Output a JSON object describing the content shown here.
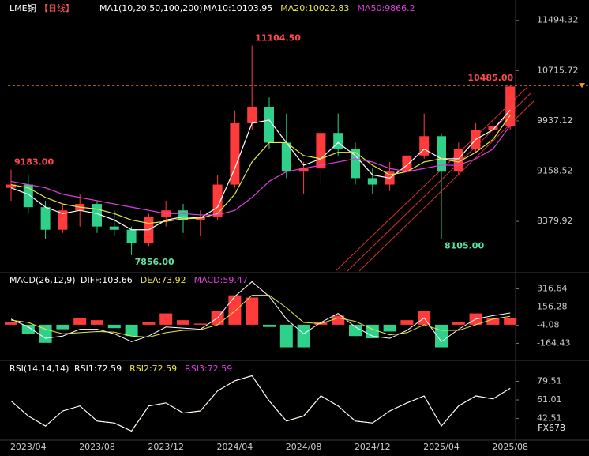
{
  "chart_data": [
    {
      "type": "candlestick",
      "title": "LME铜",
      "period": "【日线】",
      "ma_label": "MA1(10,20,50,100,200)",
      "watermark": "FX678",
      "up_color": "#ff3b3b",
      "down_color": "#2fd08a",
      "price_line": 10485,
      "price_line_color": "#ff9a1a",
      "open": [
        8900,
        8950,
        8600,
        8250,
        8550,
        8650,
        8300,
        8250,
        8050,
        8450,
        8550,
        8400,
        8450,
        8950,
        9900,
        10150,
        9600,
        9150,
        9200,
        9750,
        9500,
        9050,
        8950,
        9150,
        9400,
        9700,
        9150,
        9500,
        9800,
        9850
      ],
      "high": [
        9183,
        9100,
        8700,
        8650,
        8800,
        8700,
        8550,
        8300,
        8500,
        8700,
        8650,
        8550,
        9100,
        10100,
        11104.5,
        10300,
        10050,
        9300,
        9800,
        10050,
        9600,
        9200,
        9300,
        9500,
        10050,
        9750,
        9600,
        9900,
        10000,
        10485
      ],
      "low": [
        8700,
        8500,
        8100,
        8200,
        8300,
        8200,
        8150,
        7856,
        8000,
        8300,
        8200,
        8150,
        8400,
        8900,
        9800,
        9500,
        9050,
        8800,
        8950,
        9400,
        8950,
        8800,
        8850,
        9100,
        9350,
        8105,
        9100,
        9450,
        9650,
        9800
      ],
      "close": [
        8950,
        8600,
        8250,
        8550,
        8650,
        8300,
        8250,
        8050,
        8450,
        8550,
        8400,
        8450,
        8950,
        9900,
        10150,
        9600,
        9150,
        9200,
        9750,
        9500,
        9050,
        8950,
        9150,
        9400,
        9700,
        9150,
        9500,
        9800,
        9850,
        10470
      ],
      "series": [
        {
          "name": "MA10:10103.95",
          "color": "#ffffff",
          "values": [
            8900,
            8800,
            8600,
            8500,
            8550,
            8500,
            8400,
            8250,
            8250,
            8400,
            8450,
            8430,
            8600,
            9200,
            9900,
            9950,
            9600,
            9250,
            9350,
            9600,
            9400,
            9100,
            9050,
            9250,
            9500,
            9350,
            9350,
            9650,
            9800,
            10103.95
          ]
        },
        {
          "name": "MA20:10022.83",
          "color": "#e8e84a",
          "values": [
            8950,
            8900,
            8750,
            8650,
            8600,
            8570,
            8500,
            8400,
            8350,
            8380,
            8420,
            8430,
            8500,
            8800,
            9300,
            9600,
            9600,
            9400,
            9350,
            9450,
            9450,
            9250,
            9100,
            9150,
            9300,
            9350,
            9300,
            9450,
            9650,
            10022.83
          ]
        },
        {
          "name": "MA50:9866.2",
          "color": "#e040e0",
          "values": [
            9000,
            8950,
            8900,
            8800,
            8750,
            8700,
            8650,
            8600,
            8550,
            8500,
            8500,
            8480,
            8480,
            8550,
            8750,
            9000,
            9150,
            9200,
            9250,
            9300,
            9350,
            9300,
            9200,
            9150,
            9200,
            9250,
            9250,
            9350,
            9500,
            9866.2
          ]
        }
      ],
      "annotations": [
        {
          "value": 11104.5,
          "label": "11104.50"
        },
        {
          "value": 10485,
          "label": "10485.00"
        },
        {
          "value": 9183,
          "label": "9183.00"
        },
        {
          "value": 7856,
          "label": "7856.00"
        },
        {
          "value": 8105,
          "label": "8105.00"
        }
      ],
      "ylim": [
        7610,
        11638
      ],
      "yticks": [
        8379.92,
        9158.52,
        9937.12,
        10715.72,
        11494.32
      ]
    },
    {
      "type": "macd",
      "title": "MACD(26,12,9)",
      "series": [
        {
          "name": "DIFF:103.66",
          "color": "#ffffff",
          "values": [
            50,
            -20,
            -120,
            -100,
            -40,
            -40,
            -80,
            -150,
            -100,
            -20,
            -30,
            -40,
            60,
            250,
            380,
            250,
            50,
            -80,
            20,
            100,
            -20,
            -100,
            -120,
            -50,
            60,
            -150,
            -40,
            50,
            80,
            103.66
          ]
        },
        {
          "name": "DEA:73.92",
          "color": "#e8e84a",
          "values": [
            40,
            20,
            -40,
            -80,
            -70,
            -60,
            -65,
            -100,
            -110,
            -70,
            -50,
            -45,
            0,
            120,
            260,
            260,
            150,
            20,
            10,
            60,
            30,
            -40,
            -90,
            -70,
            0,
            -50,
            -50,
            0,
            50,
            73.92
          ]
        },
        {
          "name": "MACD:59.47",
          "color": "#e040e0",
          "bars": true,
          "values": [
            20,
            -80,
            -160,
            -40,
            60,
            40,
            -30,
            -100,
            20,
            100,
            40,
            10,
            120,
            260,
            240,
            -20,
            -200,
            -200,
            20,
            80,
            -100,
            -120,
            -60,
            40,
            120,
            -200,
            20,
            100,
            60,
            59.47
          ]
        }
      ],
      "ylim": [
        -301,
        439
      ],
      "yticks": [
        -164.43,
        -4.08,
        156.28,
        316.64
      ]
    },
    {
      "type": "rsi",
      "title": "RSI(14,14,14)",
      "categories": [
        null,
        "2023/04",
        null,
        null,
        null,
        "2023/08",
        null,
        null,
        null,
        "2023/12",
        null,
        null,
        null,
        "2024/04",
        null,
        null,
        null,
        "2024/08",
        null,
        null,
        null,
        "2024/12",
        null,
        null,
        null,
        "2025/04",
        null,
        null,
        null,
        "2025/08"
      ],
      "series": [
        {
          "name": "RSI1:72.59",
          "color": "#ffffff",
          "values": [
            60,
            45,
            35,
            50,
            55,
            40,
            38,
            30,
            55,
            58,
            48,
            50,
            70,
            80,
            85,
            60,
            40,
            45,
            65,
            55,
            40,
            38,
            50,
            58,
            65,
            35,
            55,
            65,
            62,
            72.59
          ]
        },
        {
          "name": "RSI2:72.59",
          "color": "#e8e84a",
          "values": [
            60,
            45,
            35,
            50,
            55,
            40,
            38,
            30,
            55,
            58,
            48,
            50,
            70,
            80,
            85,
            60,
            40,
            45,
            65,
            55,
            40,
            38,
            50,
            58,
            65,
            35,
            55,
            65,
            62,
            72.59
          ]
        },
        {
          "name": "RSI3:72.59",
          "color": "#e040e0",
          "values": [
            60,
            45,
            35,
            50,
            55,
            40,
            38,
            30,
            55,
            58,
            48,
            50,
            70,
            80,
            85,
            60,
            40,
            45,
            65,
            55,
            40,
            38,
            50,
            58,
            65,
            35,
            55,
            65,
            62,
            72.59
          ]
        }
      ],
      "ylim": [
        22.5,
        97.2
      ],
      "yticks": [
        42.51,
        61.01,
        79.51
      ]
    }
  ]
}
